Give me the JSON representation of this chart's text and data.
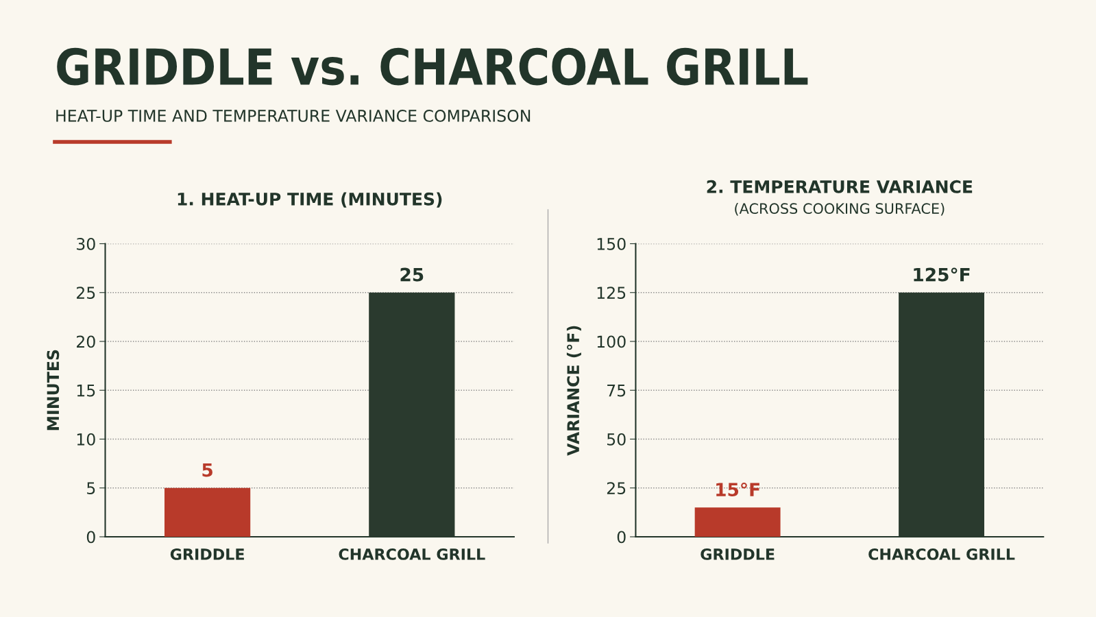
{
  "chart_data": [
    {
      "type": "other",
      "title": "GRIDDLE vs. CHARCOAL GRILL",
      "subtitle": "HEAT-UP TIME AND TEMPERATURE VARIANCE COMPARISON"
    },
    {
      "type": "bar",
      "title": "1. HEAT-UP TIME (MINUTES)",
      "ylabel": "MINUTES",
      "categories": [
        "GRIDDLE",
        "CHARCOAL GRILL"
      ],
      "values": [
        5,
        25
      ],
      "colors": [
        "#b83a2a",
        "#2a3a2e"
      ],
      "ylim": [
        0,
        30
      ],
      "yticks": [
        0,
        5,
        10,
        15,
        20,
        25,
        30
      ],
      "grid": "y",
      "data_labels": true
    },
    {
      "type": "bar",
      "title": "2. TEMPERATURE VARIANCE",
      "subtitle": "(ACROSS COOKING SURFACE)",
      "ylabel": "VARIANCE (°F)",
      "categories": [
        "GRIDDLE",
        "CHARCOAL GRILL"
      ],
      "values": [
        15,
        125
      ],
      "colors": [
        "#b83a2a",
        "#2a3a2e"
      ],
      "value_labels": [
        "15°F",
        "125°F"
      ],
      "ylim": [
        0,
        150
      ],
      "yticks": [
        0,
        25,
        50,
        75,
        100,
        125,
        150
      ],
      "grid": "y"
    }
  ]
}
